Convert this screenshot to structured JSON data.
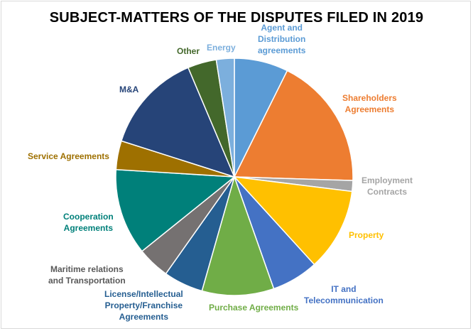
{
  "chart_data": {
    "type": "pie",
    "title": "SUBJECT-MATTERS OF THE DISPUTES FILED IN 2019",
    "legend": "none",
    "slices": [
      {
        "label": "Agent and Distribution agreements",
        "lines": [
          "Agent and",
          "Distribution",
          "agreements"
        ],
        "value": 7.5,
        "color": "#5b9bd5",
        "label_color": "#5b9bd5"
      },
      {
        "label": "Shareholders Agreements",
        "lines": [
          "Shareholders",
          "Agreements"
        ],
        "value": 18.5,
        "color": "#ed7d31",
        "label_color": "#ed7d31"
      },
      {
        "label": "Employment Contracts",
        "lines": [
          "Employment",
          "Contracts"
        ],
        "value": 1.5,
        "color": "#a5a5a5",
        "label_color": "#a5a5a5"
      },
      {
        "label": "Property",
        "lines": [
          "Property"
        ],
        "value": 11.5,
        "color": "#ffc000",
        "label_color": "#ffc000"
      },
      {
        "label": "IT and Telecommunication",
        "lines": [
          "IT and",
          "Telecommunication"
        ],
        "value": 6.5,
        "color": "#4472c4",
        "label_color": "#4472c4"
      },
      {
        "label": "Purchase Agreements",
        "lines": [
          "Purchase Agreements"
        ],
        "value": 10,
        "color": "#70ad47",
        "label_color": "#70ad47"
      },
      {
        "label": "License/Intellectual Property/Franchise Agreements",
        "lines": [
          "License/Intellectual",
          "Property/Franchise",
          "Agreements"
        ],
        "value": 5.5,
        "color": "#255e91",
        "label_color": "#255e91"
      },
      {
        "label": "Maritime relations and Transportation",
        "lines": [
          "Maritime relations",
          "and Transportation"
        ],
        "value": 4.5,
        "color": "#757171",
        "label_color": "#595959"
      },
      {
        "label": "Cooperation Agreements",
        "lines": [
          "Cooperation",
          "Agreements"
        ],
        "value": 12,
        "color": "#00807a",
        "label_color": "#00807a"
      },
      {
        "label": "Service Agreements",
        "lines": [
          "Service Agreements"
        ],
        "value": 4,
        "color": "#9e7000",
        "label_color": "#9e7000"
      },
      {
        "label": "M&A",
        "lines": [
          "M&A"
        ],
        "value": 14,
        "color": "#264478",
        "label_color": "#264478"
      },
      {
        "label": "Other",
        "lines": [
          "Other"
        ],
        "value": 4,
        "color": "#43682b",
        "label_color": "#43682b"
      },
      {
        "label": "Energy",
        "lines": [
          "Energy"
        ],
        "value": 2.5,
        "color": "#7cafdd",
        "label_color": "#7cafdd"
      }
    ]
  }
}
